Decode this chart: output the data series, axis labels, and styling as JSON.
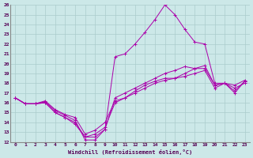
{
  "xlabel": "Windchill (Refroidissement éolien,°C)",
  "xlim": [
    -0.5,
    23.5
  ],
  "ylim": [
    12,
    26
  ],
  "xticks": [
    0,
    1,
    2,
    3,
    4,
    5,
    6,
    7,
    8,
    9,
    10,
    11,
    12,
    13,
    14,
    15,
    16,
    17,
    18,
    19,
    20,
    21,
    22,
    23
  ],
  "yticks": [
    12,
    13,
    14,
    15,
    16,
    17,
    18,
    19,
    20,
    21,
    22,
    23,
    24,
    25,
    26
  ],
  "bg_color": "#cce8e8",
  "grid_color": "#aacccc",
  "line_color": "#aa00aa",
  "lines": [
    {
      "x": [
        0,
        1,
        2,
        3,
        4,
        5,
        6,
        7,
        8,
        9,
        10,
        11,
        12,
        13,
        14,
        15,
        16,
        17,
        18,
        19,
        20,
        21,
        22,
        23
      ],
      "y": [
        16.5,
        15.9,
        15.9,
        16.1,
        15.2,
        14.7,
        14.2,
        12.2,
        12.2,
        13.3,
        20.7,
        21.0,
        22.0,
        23.2,
        24.5,
        26.0,
        25.0,
        23.5,
        22.2,
        22.0,
        18.0,
        18.0,
        17.8,
        18.3
      ]
    },
    {
      "x": [
        0,
        1,
        2,
        3,
        4,
        5,
        6,
        7,
        8,
        9,
        10,
        11,
        12,
        13,
        14,
        15,
        16,
        17,
        18,
        19,
        20,
        21,
        22,
        23
      ],
      "y": [
        16.5,
        15.9,
        15.9,
        16.0,
        15.0,
        14.5,
        13.8,
        12.5,
        12.5,
        13.3,
        16.5,
        17.0,
        17.5,
        18.0,
        18.5,
        19.0,
        19.3,
        19.7,
        19.5,
        19.5,
        17.8,
        18.0,
        17.0,
        18.2
      ]
    },
    {
      "x": [
        0,
        1,
        2,
        3,
        4,
        5,
        6,
        7,
        8,
        9,
        10,
        11,
        12,
        13,
        14,
        15,
        16,
        17,
        18,
        19,
        20,
        21,
        22,
        23
      ],
      "y": [
        16.5,
        15.9,
        15.9,
        16.2,
        15.3,
        14.8,
        14.5,
        12.8,
        13.2,
        14.0,
        16.2,
        16.5,
        17.2,
        17.8,
        18.2,
        18.5,
        18.5,
        18.7,
        19.0,
        19.3,
        17.5,
        18.0,
        17.5,
        18.0
      ]
    },
    {
      "x": [
        0,
        1,
        2,
        3,
        4,
        5,
        6,
        7,
        8,
        9,
        10,
        11,
        12,
        13,
        14,
        15,
        16,
        17,
        18,
        19,
        20,
        21,
        22,
        23
      ],
      "y": [
        16.5,
        15.9,
        15.9,
        16.0,
        15.0,
        14.5,
        14.0,
        12.5,
        12.8,
        13.5,
        16.0,
        16.5,
        17.0,
        17.5,
        18.0,
        18.3,
        18.5,
        19.0,
        19.5,
        19.8,
        17.8,
        18.0,
        17.2,
        18.2
      ]
    }
  ]
}
